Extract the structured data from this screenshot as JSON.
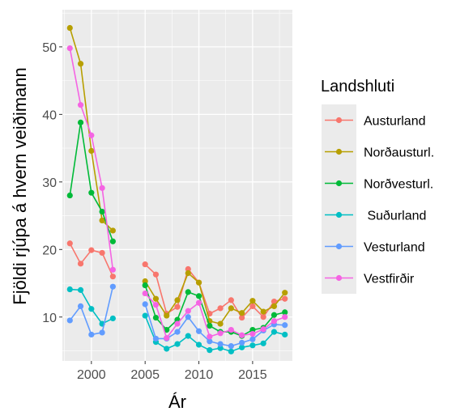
{
  "chart_data": {
    "type": "line",
    "xlabel": "Ár",
    "ylabel": "Fjöldi rjúpa á hvern veiðimann",
    "xlim": [
      1997.3,
      2018.7
    ],
    "ylim": [
      3.5,
      55.5
    ],
    "x_ticks": [
      2000,
      2005,
      2010,
      2015
    ],
    "y_ticks": [
      10,
      20,
      30,
      40,
      50
    ],
    "grid": true,
    "legend": {
      "title": "Landshluti",
      "position": "right"
    },
    "x": [
      1998,
      1999,
      2000,
      2001,
      2002,
      2005,
      2006,
      2007,
      2008,
      2009,
      2010,
      2011,
      2012,
      2013,
      2014,
      2015,
      2016,
      2017,
      2018
    ],
    "series": [
      {
        "name": "Austurland",
        "color": "#F8766D",
        "values": [
          20.9,
          17.9,
          19.9,
          19.5,
          16.0,
          17.8,
          16.3,
          10.5,
          11.5,
          17.1,
          15.1,
          10.5,
          11.3,
          12.5,
          9.9,
          11.6,
          10.0,
          12.3,
          12.7
        ]
      },
      {
        "name": "Norðausturl.",
        "color": "#B79F00",
        "values": [
          52.8,
          47.5,
          34.6,
          24.3,
          22.8,
          15.3,
          12.7,
          10.2,
          12.5,
          16.5,
          15.1,
          9.4,
          9.0,
          11.3,
          10.6,
          12.4,
          10.8,
          11.6,
          13.6
        ]
      },
      {
        "name": "Norðvesturl.",
        "color": "#00BA38",
        "values": [
          28.0,
          38.8,
          28.4,
          25.6,
          21.2,
          14.7,
          9.9,
          8.1,
          9.6,
          13.7,
          13.1,
          8.7,
          7.8,
          7.8,
          7.2,
          8.1,
          8.4,
          10.3,
          10.7
        ]
      },
      {
        "name": " Suðurland",
        "color": "#00BFC4",
        "values": [
          14.1,
          14.0,
          11.2,
          9.0,
          9.8,
          10.2,
          6.3,
          5.3,
          6.0,
          7.2,
          5.9,
          5.1,
          5.4,
          4.9,
          5.5,
          5.8,
          6.1,
          7.8,
          7.4
        ]
      },
      {
        "name": "Vesturland",
        "color": "#619CFF",
        "values": [
          9.5,
          11.6,
          7.4,
          7.7,
          14.5,
          11.9,
          6.8,
          6.8,
          7.8,
          10.0,
          7.9,
          6.4,
          6.0,
          5.7,
          6.2,
          6.7,
          8.0,
          8.9,
          8.8
        ]
      },
      {
        "name": "Vestfirðir",
        "color": "#F564E3",
        "values": [
          49.8,
          41.4,
          36.9,
          29.1,
          17.0,
          13.5,
          11.8,
          6.9,
          9.0,
          10.9,
          12.1,
          7.1,
          7.6,
          8.1,
          7.3,
          7.5,
          8.2,
          9.4,
          10.0
        ]
      }
    ]
  }
}
